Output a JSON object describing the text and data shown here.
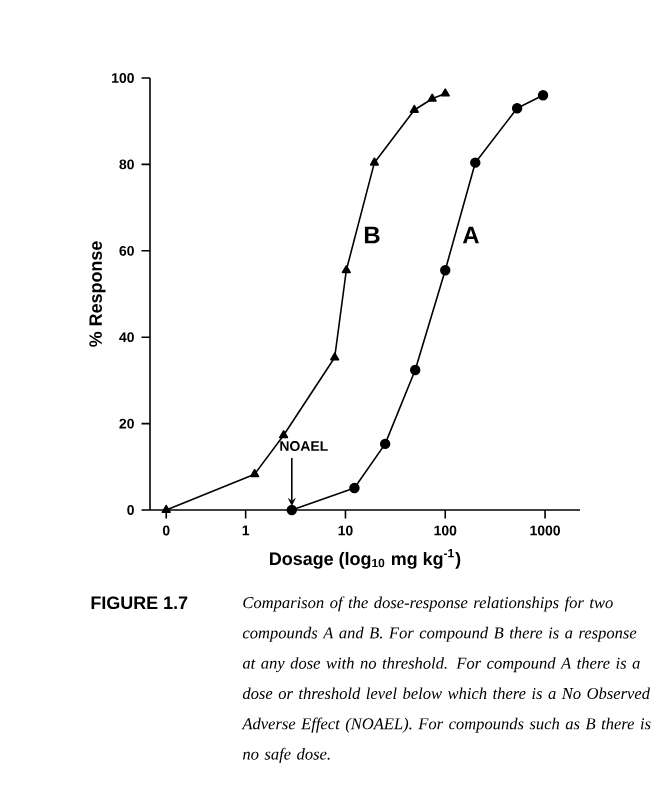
{
  "chart_data": {
    "type": "line",
    "xlabel": "Dosage (log$_{10}$ mg kg$^{-1}$)",
    "ylabel": "% Response",
    "xlim": [
      0.11,
      2240
    ],
    "ylim": [
      0,
      100
    ],
    "log": "x",
    "xticks": [
      {
        "value": 0.16,
        "label": "0"
      },
      1,
      10,
      100,
      1000
    ],
    "yticks": [
      0,
      20,
      40,
      60,
      80,
      100
    ],
    "grid": false,
    "legend": false,
    "line_style": "solid",
    "series": [
      {
        "name": "B",
        "color": "#000000",
        "marker": "triangle",
        "x": [
          0.16,
          1.23,
          2.4,
          7.8,
          10.2,
          19.5,
          49,
          74,
          100
        ],
        "values": [
          0,
          8.3,
          17.3,
          35.3,
          55.5,
          80.4,
          92.6,
          95.2,
          96.4
        ]
      },
      {
        "name": "A",
        "color": "#000000",
        "marker": "circle",
        "x": [
          2.9,
          12.3,
          25,
          50,
          100,
          200,
          525,
          955
        ],
        "values": [
          0,
          5.1,
          15.3,
          32.4,
          55.5,
          80.4,
          93,
          96
        ]
      }
    ],
    "annotations": [
      {
        "text": "NOAEL",
        "x": 2.9,
        "y": 0
      },
      "FIGURE 1.7",
      "Comparison of the dose-response relationships for two compounds A and B. For compound B there is a response at any dose with no threshold. For compound A there is a dose or threshold level below which there is a No Observed Adverse Effect (NOAEL). For compounds such as B there is no safe dose."
    ]
  }
}
